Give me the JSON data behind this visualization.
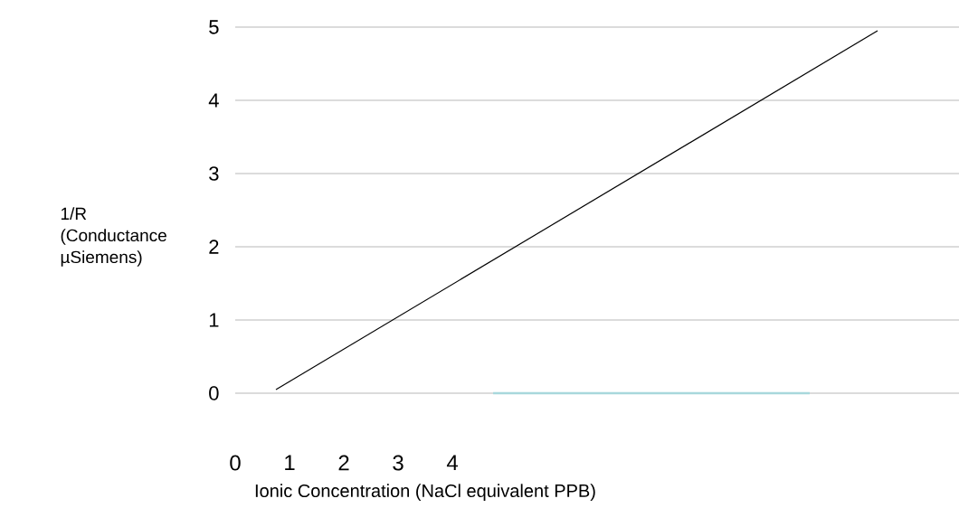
{
  "chart_data": {
    "type": "line",
    "xlabel": "Ionic Concentration (NaCl equivalent PPB)",
    "ylabel": "1/R (Conductance µSiemens)",
    "xlim": [
      0,
      13.33
    ],
    "ylim": [
      0,
      5
    ],
    "xticks": [
      0,
      1,
      2,
      3,
      4
    ],
    "yticks": [
      0,
      1,
      2,
      3,
      4,
      5
    ],
    "grid": "y",
    "marker": "none",
    "line_style": "solid",
    "series": [
      {
        "color": "#000000",
        "x": [
          0.75,
          11.83
        ],
        "values": [
          0.05,
          4.95
        ]
      },
      {
        "color": "#a8d8dc",
        "x": [
          4.75,
          10.58
        ],
        "values": [
          0,
          0
        ]
      }
    ]
  }
}
